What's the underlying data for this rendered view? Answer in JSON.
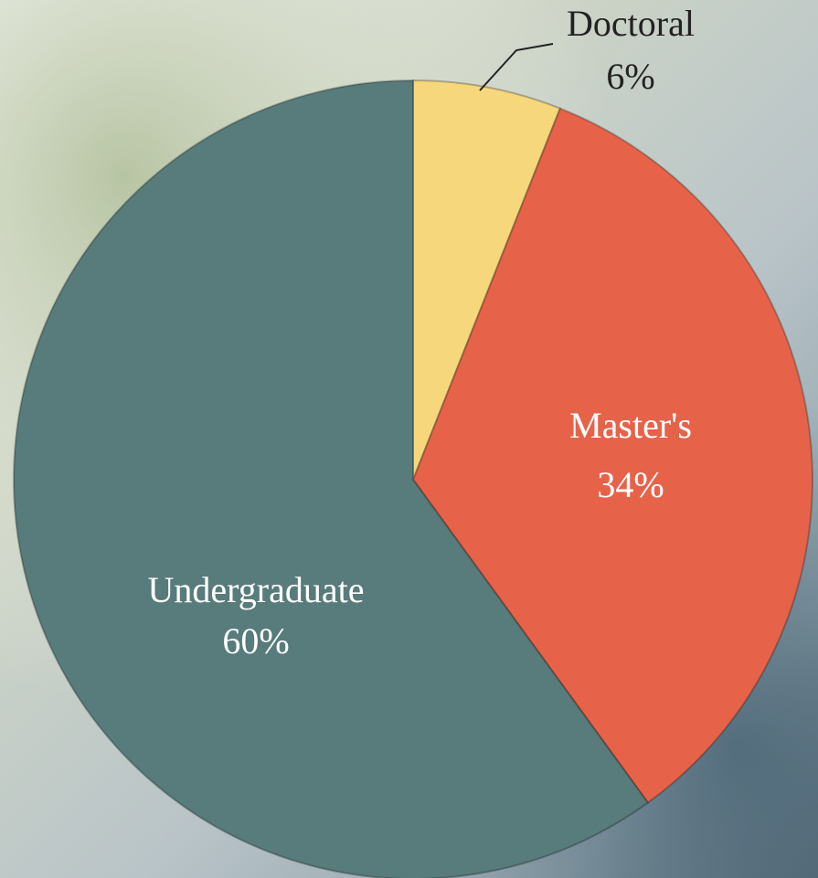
{
  "chart_data": {
    "type": "pie",
    "categories": [
      "Doctoral",
      "Master's",
      "Undergraduate"
    ],
    "values": [
      6,
      34,
      60
    ],
    "value_labels": [
      "6%",
      "34%",
      "60%"
    ],
    "colors": [
      "#f7d77c",
      "#e6634a",
      "#587b7b"
    ]
  }
}
